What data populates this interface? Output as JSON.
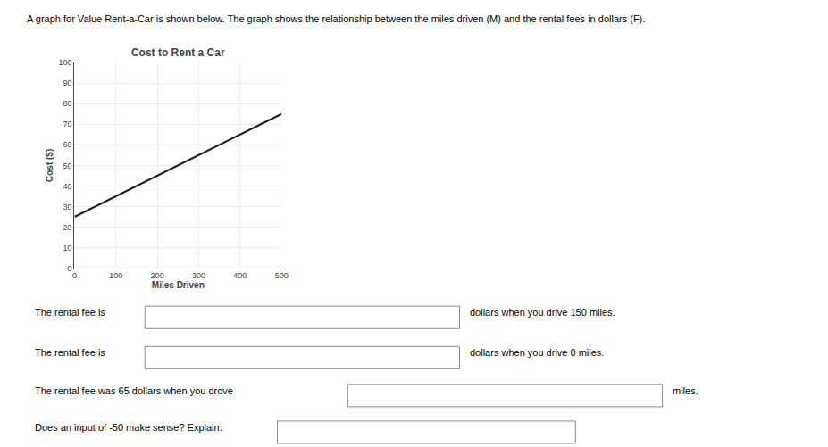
{
  "chart_data": {
    "type": "line",
    "title": "Cost to Rent a Car",
    "subtitle": "A graph for Value Rent-a-Car is shown below. The graph shows the relationship between the miles driven (M) and the rental fees in dollars (F).",
    "x_label": "Miles Driven",
    "y_label": "Cost ($)",
    "x": [
      0,
      500
    ],
    "values": [
      25,
      75
    ],
    "color": "#1a1a1a",
    "xlim": [
      0,
      500
    ],
    "ylim": [
      0,
      100
    ],
    "xticks": [
      0,
      100,
      200,
      300,
      400,
      500
    ],
    "yticks": [
      0,
      10,
      20,
      30,
      40,
      50,
      60,
      70,
      80,
      90,
      100
    ],
    "grid": true,
    "annotations": [
      "The rental fee is",
      "dollars when you drive 150 miles.",
      "The rental fee is",
      "dollars when you drive 0 miles.",
      "The rental fee was 65 dollars when you drove",
      "miles.",
      "Does an input of -50 make sense? Explain."
    ]
  }
}
